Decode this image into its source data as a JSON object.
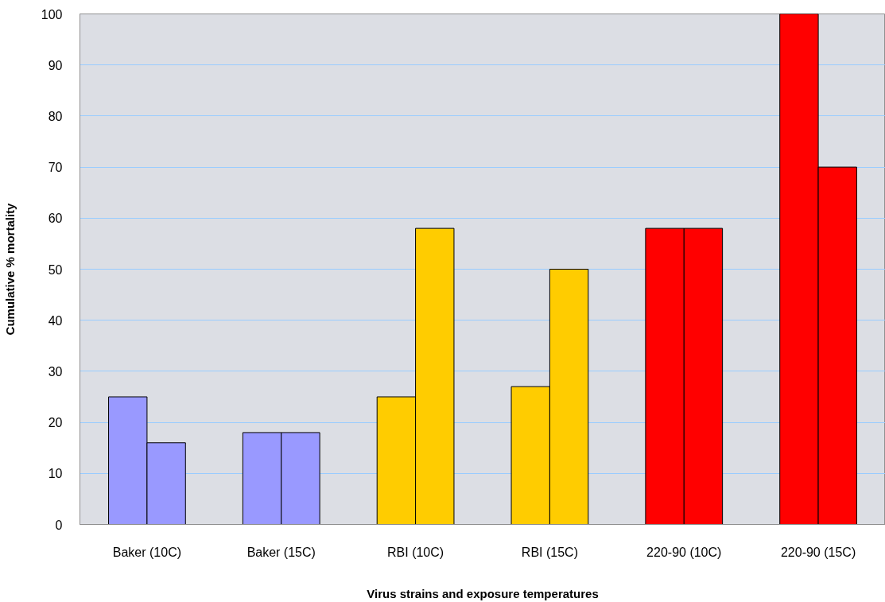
{
  "chart_data": {
    "type": "bar",
    "xlabel": "Virus strains and exposure temperatures",
    "ylabel": "Cumulative % mortality",
    "categories": [
      "Baker (10C)",
      "Baker (15C)",
      "RBI (10C)",
      "RBI (15C)",
      "220-90 (10C)",
      "220-90 (15C)"
    ],
    "series": [
      {
        "colors": [
          "#9999ff",
          "#9999ff",
          "#ffcc00",
          "#ffcc00",
          "#ff0000",
          "#ff0000"
        ],
        "values": [
          25,
          18,
          25,
          27,
          58,
          100
        ]
      },
      {
        "colors": [
          "#9999ff",
          "#9999ff",
          "#ffcc00",
          "#ffcc00",
          "#ff0000",
          "#ff0000"
        ],
        "values": [
          16,
          18,
          58,
          50,
          58,
          70
        ]
      }
    ],
    "ylim": [
      0,
      100
    ],
    "yticks": [
      0,
      10,
      20,
      30,
      40,
      50,
      60,
      70,
      80,
      90,
      100
    ],
    "grid": "y"
  }
}
